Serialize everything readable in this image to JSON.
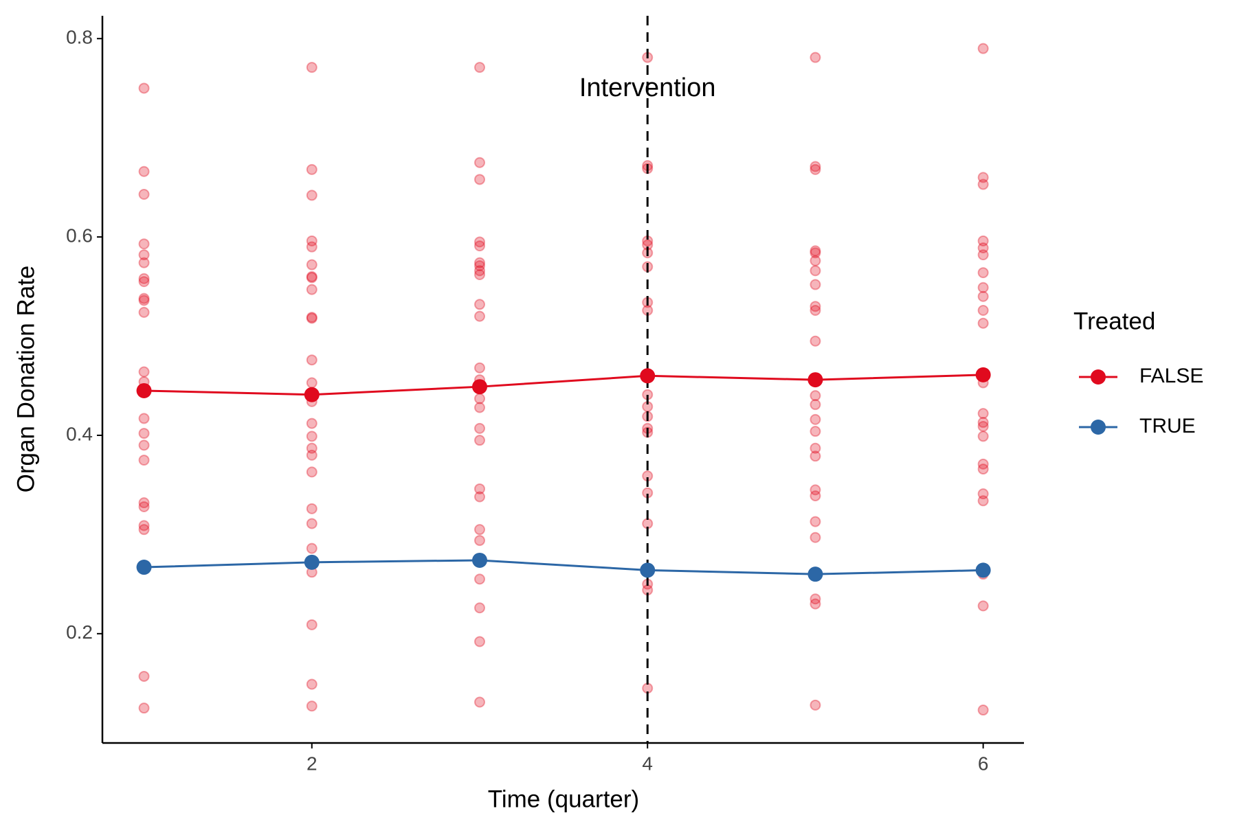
{
  "chart_data": {
    "type": "line",
    "x_label": "Time (quarter)",
    "y_label": "Organ Donation Rate",
    "legend_title": "Treated",
    "legend_position": "right",
    "grid": false,
    "xlim": [
      0.752,
      6.243
    ],
    "ylim": [
      0.0898,
      0.823
    ],
    "xticks": [
      2,
      4,
      6
    ],
    "yticks": [
      0.2,
      0.4,
      0.6,
      0.8
    ],
    "x": [
      1,
      2,
      3,
      4,
      5,
      6
    ],
    "series": [
      {
        "name": "FALSE",
        "color": "#e00a1e",
        "values": [
          0.445,
          0.441,
          0.449,
          0.46,
          0.456,
          0.461
        ]
      },
      {
        "name": "TRUE",
        "color": "#2c67a6",
        "values": [
          0.267,
          0.272,
          0.274,
          0.264,
          0.26,
          0.264
        ]
      }
    ],
    "points": {
      "color": "#e00a1e",
      "x": [
        1,
        1,
        1,
        1,
        1,
        1,
        1,
        1,
        1,
        1,
        1,
        1,
        1,
        1,
        1,
        1,
        1,
        1,
        1,
        1,
        1,
        1,
        1,
        1,
        1,
        2,
        2,
        2,
        2,
        2,
        2,
        2,
        2,
        2,
        2,
        2,
        2,
        2,
        2,
        2,
        2,
        2,
        2,
        2,
        2,
        2,
        2,
        2,
        2,
        2,
        2,
        3,
        3,
        3,
        3,
        3,
        3,
        3,
        3,
        3,
        3,
        3,
        3,
        3,
        3,
        3,
        3,
        3,
        3,
        3,
        3,
        3,
        3,
        3,
        3,
        3,
        4,
        4,
        4,
        4,
        4,
        4,
        4,
        4,
        4,
        4,
        4,
        4,
        4,
        4,
        4,
        4,
        4,
        4,
        4,
        4,
        5,
        5,
        5,
        5,
        5,
        5,
        5,
        5,
        5,
        5,
        5,
        5,
        5,
        5,
        5,
        5,
        5,
        5,
        5,
        5,
        5,
        5,
        5,
        5,
        6,
        6,
        6,
        6,
        6,
        6,
        6,
        6,
        6,
        6,
        6,
        6,
        6,
        6,
        6,
        6,
        6,
        6,
        6,
        6,
        6,
        6,
        6
      ],
      "y": [
        0.75,
        0.666,
        0.643,
        0.593,
        0.582,
        0.574,
        0.558,
        0.555,
        0.538,
        0.536,
        0.524,
        0.464,
        0.454,
        0.445,
        0.417,
        0.402,
        0.39,
        0.375,
        0.332,
        0.328,
        0.309,
        0.305,
        0.265,
        0.157,
        0.125,
        0.771,
        0.668,
        0.642,
        0.596,
        0.59,
        0.572,
        0.56,
        0.559,
        0.547,
        0.519,
        0.518,
        0.476,
        0.453,
        0.434,
        0.412,
        0.399,
        0.387,
        0.38,
        0.363,
        0.326,
        0.311,
        0.286,
        0.262,
        0.209,
        0.149,
        0.127,
        0.771,
        0.675,
        0.658,
        0.595,
        0.591,
        0.574,
        0.571,
        0.566,
        0.562,
        0.532,
        0.52,
        0.468,
        0.456,
        0.437,
        0.428,
        0.407,
        0.395,
        0.346,
        0.338,
        0.305,
        0.294,
        0.255,
        0.226,
        0.192,
        0.131,
        0.781,
        0.672,
        0.669,
        0.596,
        0.592,
        0.584,
        0.57,
        0.534,
        0.526,
        0.441,
        0.429,
        0.419,
        0.407,
        0.403,
        0.359,
        0.342,
        0.311,
        0.25,
        0.244,
        0.145,
        0.781,
        0.671,
        0.668,
        0.586,
        0.584,
        0.576,
        0.566,
        0.552,
        0.53,
        0.526,
        0.495,
        0.44,
        0.431,
        0.416,
        0.404,
        0.387,
        0.379,
        0.345,
        0.339,
        0.313,
        0.297,
        0.235,
        0.23,
        0.128,
        0.79,
        0.66,
        0.653,
        0.596,
        0.589,
        0.582,
        0.564,
        0.549,
        0.54,
        0.526,
        0.513,
        0.453,
        0.422,
        0.413,
        0.409,
        0.399,
        0.371,
        0.366,
        0.341,
        0.334,
        0.26,
        0.228,
        0.123
      ]
    },
    "vline": {
      "x": 4,
      "color": "#000000"
    },
    "annotation": {
      "text": "Intervention",
      "x": 4,
      "y": 0.749
    }
  }
}
